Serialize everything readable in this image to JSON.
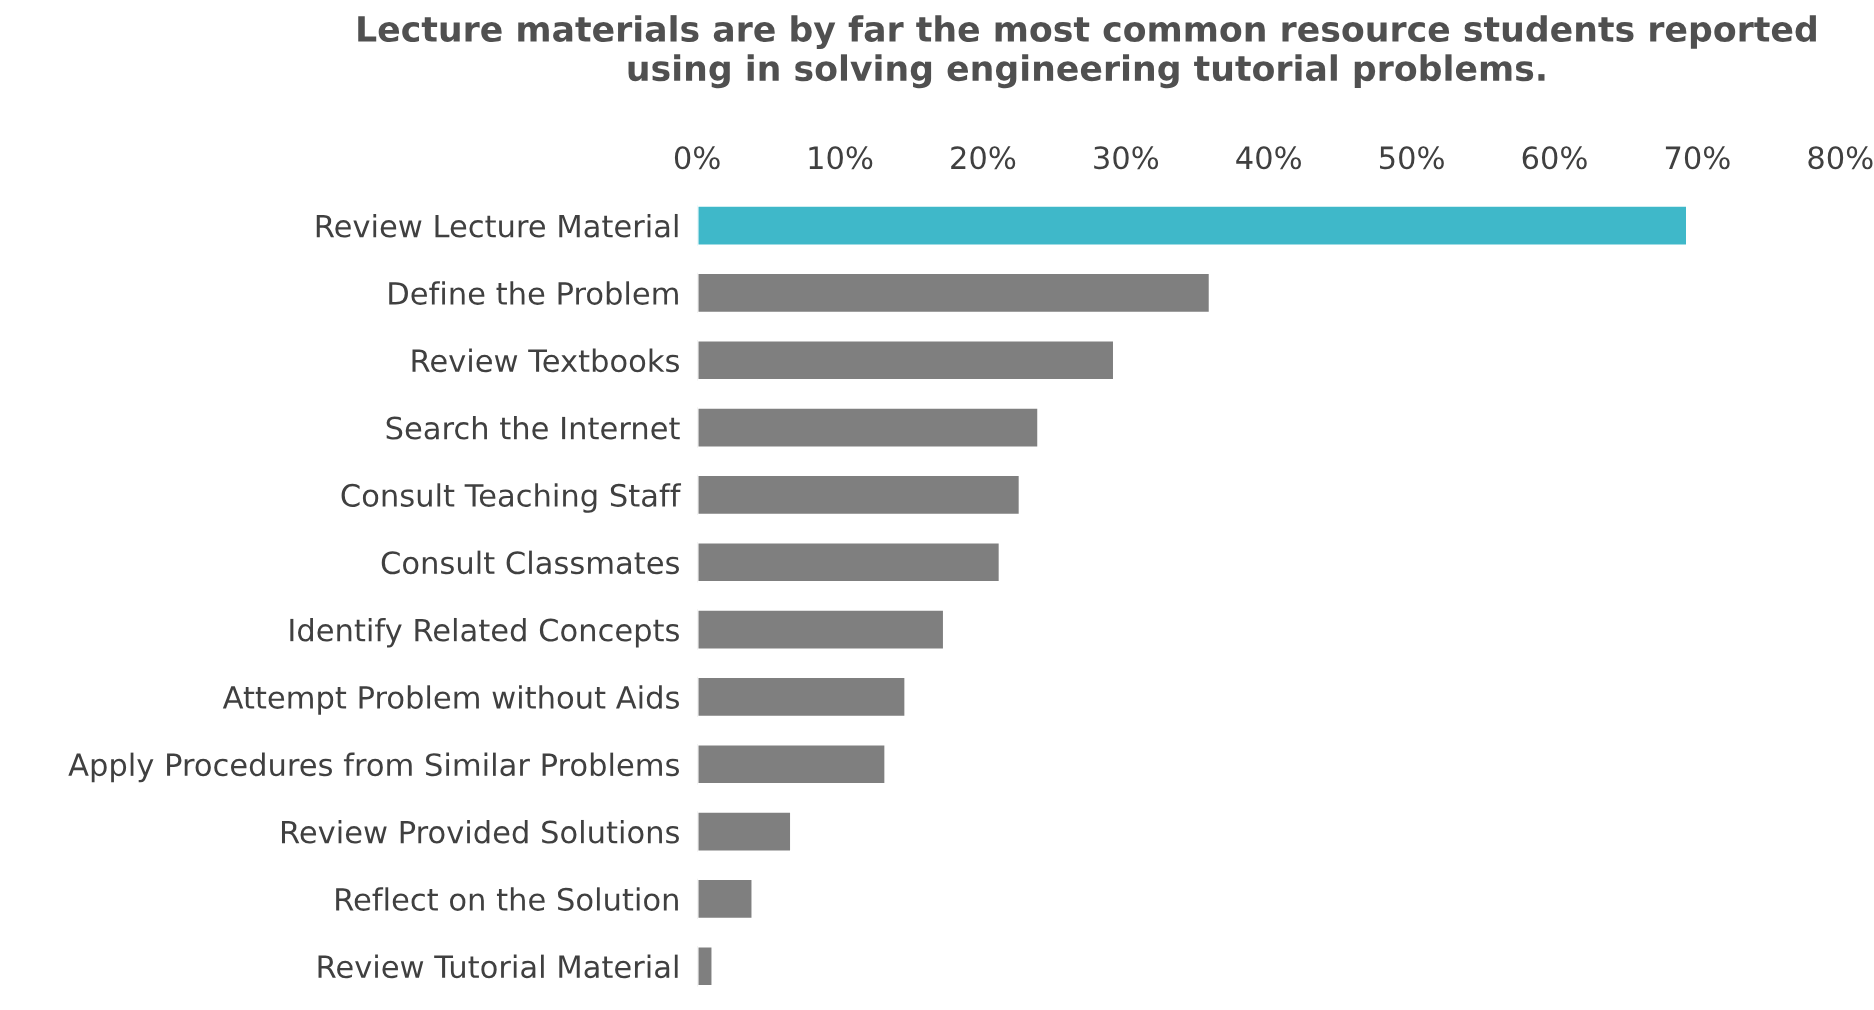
{
  "chart_data": {
    "type": "bar",
    "orientation": "horizontal",
    "title": "Lecture materials are by far the most common resource students reported using in solving engineering tutorial problems.",
    "categories": [
      "Review Lecture Material",
      "Define the Problem",
      "Review Textbooks",
      "Search the Internet",
      "Consult Teaching Staff",
      "Consult Classmates",
      "Identify Related Concepts",
      "Attempt Problem without Aids",
      "Apply Procedures from Similar Problems",
      "Review Provided Solutions",
      "Reflect on the Solution",
      "Review Tutorial Material"
    ],
    "values": [
      69.3,
      35.9,
      29.2,
      23.9,
      22.6,
      21.2,
      17.3,
      14.6,
      13.2,
      6.6,
      3.9,
      1.1
    ],
    "colors": [
      "#3fb8c9",
      "#7f7f7f",
      "#7f7f7f",
      "#7f7f7f",
      "#7f7f7f",
      "#7f7f7f",
      "#7f7f7f",
      "#7f7f7f",
      "#7f7f7f",
      "#7f7f7f",
      "#7f7f7f",
      "#7f7f7f"
    ],
    "xlim": [
      0,
      80
    ],
    "xticks": [
      {
        "value": 0,
        "label": "0%"
      },
      {
        "value": 10,
        "label": "10%"
      },
      {
        "value": 20,
        "label": "20%"
      },
      {
        "value": 30,
        "label": "30%"
      },
      {
        "value": 40,
        "label": "40%"
      },
      {
        "value": 50,
        "label": "50%"
      },
      {
        "value": 60,
        "label": "60%"
      },
      {
        "value": 70,
        "label": "70%"
      },
      {
        "value": 80,
        "label": "80%"
      }
    ],
    "grid": false,
    "legend": false
  }
}
